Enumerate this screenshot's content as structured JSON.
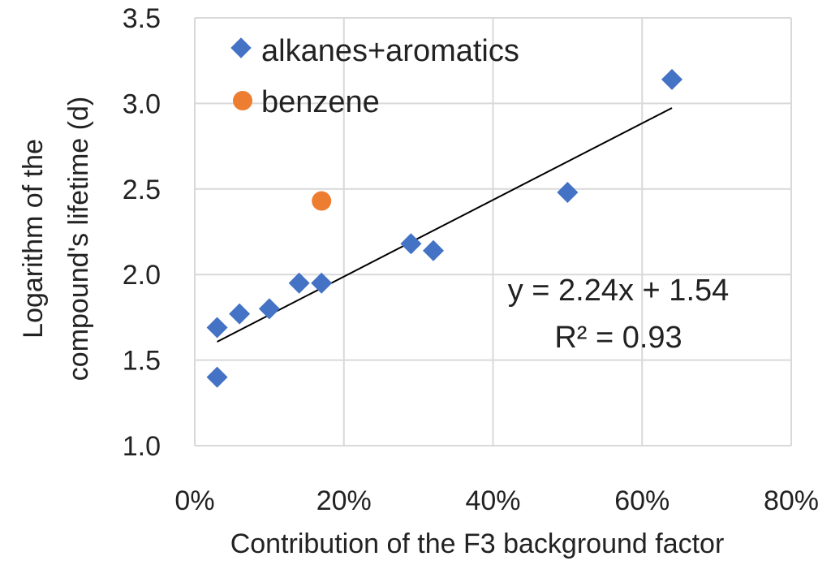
{
  "chart_data": {
    "type": "scatter",
    "xlabel": "Contribution of the F3 background factor",
    "ylabel_lines": [
      "Logarithm of the",
      "compound's lifetime (d)"
    ],
    "xlim": [
      0,
      0.8
    ],
    "ylim": [
      1.0,
      3.5
    ],
    "x_ticks": [
      0,
      0.2,
      0.4,
      0.6,
      0.8
    ],
    "x_tick_labels": [
      "0%",
      "20%",
      "40%",
      "60%",
      "80%"
    ],
    "y_ticks": [
      1.0,
      1.5,
      2.0,
      2.5,
      3.0,
      3.5
    ],
    "y_tick_labels": [
      "1.0",
      "1.5",
      "2.0",
      "2.5",
      "3.0",
      "3.5"
    ],
    "grid": true,
    "legend_position": "top-left",
    "series": [
      {
        "name": "alkanes+aromatics",
        "marker": "diamond",
        "color": "#4472C4",
        "x": [
          0.03,
          0.03,
          0.06,
          0.1,
          0.14,
          0.17,
          0.29,
          0.32,
          0.5,
          0.64
        ],
        "y": [
          1.69,
          1.4,
          1.77,
          1.8,
          1.95,
          1.95,
          2.18,
          2.14,
          2.48,
          3.14
        ]
      },
      {
        "name": "benzene",
        "marker": "circle",
        "color": "#ED7D31",
        "x": [
          0.17
        ],
        "y": [
          2.43
        ]
      }
    ],
    "trendline": {
      "slope": 2.24,
      "intercept": 1.54,
      "x_range": [
        0.03,
        0.64
      ],
      "color": "#000000",
      "equation_text": "y = 2.24x + 1.54",
      "r2_text": "R² = 0.93"
    }
  }
}
